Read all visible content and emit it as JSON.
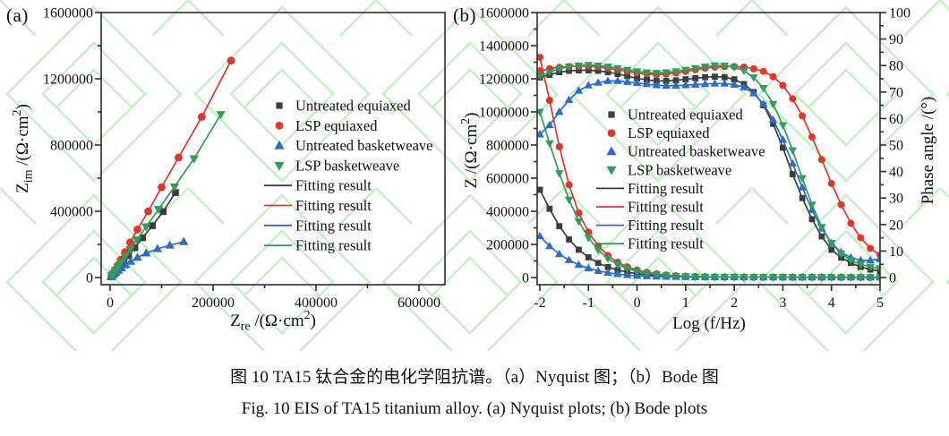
{
  "panels": {
    "a": "(a)",
    "b": "(b)"
  },
  "caption": {
    "zh": "图 10 TA15 钛合金的电化学阻抗谱。（a）Nyquist 图；（b）Bode 图",
    "en": "Fig. 10 EIS of TA15 titanium alloy. (a) Nyquist plots; (b) Bode plots"
  },
  "colors": {
    "black": "#3d3d3d",
    "red": "#e53429",
    "blue": "#2b6cd0",
    "green": "#2e9e5c",
    "axis": "#2f2f2f",
    "watermark": "#8ee88e"
  },
  "chart_data": [
    {
      "type": "scatter",
      "panel": "(a)",
      "xlabel": "Zre /(Ω·cm2)",
      "ylabel": "Zim /(Ω·cm2)",
      "xlabel_parts": [
        [
          "Z"
        ],
        [
          "re",
          "sub"
        ],
        [
          " /(Ω·cm"
        ],
        [
          "2",
          "sup"
        ],
        [
          ")"
        ]
      ],
      "ylabel_parts": [
        [
          "Z"
        ],
        [
          "im",
          "sub"
        ],
        [
          " /(Ω·cm"
        ],
        [
          "2",
          "sup"
        ],
        [
          ")"
        ]
      ],
      "xlim": [
        0,
        650000
      ],
      "ylim": [
        0,
        1600000
      ],
      "xticks": [
        0,
        200000,
        400000,
        600000
      ],
      "yticks": [
        0,
        400000,
        800000,
        1200000,
        1600000
      ],
      "xminor": [
        100000,
        300000,
        500000
      ],
      "yminor": [
        200000,
        600000,
        1000000,
        1400000
      ],
      "grid": false,
      "legend_position": "inside-right",
      "fitting_label": "Fitting result",
      "series": [
        {
          "name": "Untreated equiaxed",
          "color_key": "black",
          "marker": "square",
          "points": [
            [
              2000,
              5000
            ],
            [
              5000,
              14000
            ],
            [
              9000,
              28000
            ],
            [
              14000,
              47000
            ],
            [
              20000,
              70000
            ],
            [
              27000,
              98000
            ],
            [
              36000,
              133000
            ],
            [
              48000,
              180000
            ],
            [
              63000,
              240000
            ],
            [
              82000,
              313000
            ],
            [
              103000,
              398000
            ],
            [
              127000,
              513000
            ]
          ]
        },
        {
          "name": "LSP equiaxed",
          "color_key": "red",
          "marker": "circle",
          "points": [
            [
              3000,
              12000
            ],
            [
              6000,
              25000
            ],
            [
              10000,
              47000
            ],
            [
              15000,
              74000
            ],
            [
              21000,
              108000
            ],
            [
              29000,
              153000
            ],
            [
              39000,
              212000
            ],
            [
              53000,
              290000
            ],
            [
              74000,
              400000
            ],
            [
              100000,
              545000
            ],
            [
              133000,
              725000
            ],
            [
              178000,
              970000
            ],
            [
              235000,
              1310000
            ]
          ]
        },
        {
          "name": "Untreated basketweave",
          "color_key": "blue",
          "marker": "tri-up",
          "points": [
            [
              2000,
              5000
            ],
            [
              4000,
              11000
            ],
            [
              7000,
              19000
            ],
            [
              11000,
              30000
            ],
            [
              16000,
              43000
            ],
            [
              22000,
              58000
            ],
            [
              30000,
              76000
            ],
            [
              40000,
              97000
            ],
            [
              53000,
              121000
            ],
            [
              70000,
              147000
            ],
            [
              92000,
              173000
            ],
            [
              116000,
              195000
            ],
            [
              143000,
              216000
            ]
          ]
        },
        {
          "name": "LSP basketweave",
          "color_key": "green",
          "marker": "tri-down",
          "points": [
            [
              3000,
              11000
            ],
            [
              6000,
              23000
            ],
            [
              10000,
              42000
            ],
            [
              15000,
              64000
            ],
            [
              21000,
              92000
            ],
            [
              29000,
              127000
            ],
            [
              39000,
              170000
            ],
            [
              52000,
              228000
            ],
            [
              70000,
              307000
            ],
            [
              94000,
              412000
            ],
            [
              125000,
              548000
            ],
            [
              163000,
              718000
            ],
            [
              215000,
              985000
            ]
          ]
        }
      ]
    },
    {
      "type": "line",
      "panel": "(b)",
      "xlabel": "Log (f/Hz)",
      "ylabel_left": "Z /(Ω·cm2)",
      "ylabel_right": "Phase angle /(°)",
      "xlabel_parts": [
        [
          "Log (f/Hz)"
        ]
      ],
      "ylabel_left_parts": [
        [
          "Z /(Ω·cm"
        ],
        [
          "2",
          "sup"
        ],
        [
          ")"
        ]
      ],
      "ylabel_right_parts": [
        [
          "Phase angle /(°)"
        ]
      ],
      "xlim": [
        -2,
        5
      ],
      "ylim_left": [
        0,
        1600000
      ],
      "ylim_right": [
        0,
        100
      ],
      "xticks": [
        -2,
        -1,
        0,
        1,
        2,
        3,
        4,
        5
      ],
      "yticks_left": [
        0,
        200000,
        400000,
        600000,
        800000,
        1000000,
        1200000,
        1400000,
        1600000
      ],
      "yticks_right": [
        0,
        10,
        20,
        30,
        40,
        50,
        60,
        70,
        80,
        90,
        100
      ],
      "grid": false,
      "legend_position": "inside-center",
      "fitting_label": "Fitting result",
      "x": [
        -2,
        -1.8,
        -1.6,
        -1.4,
        -1.2,
        -1,
        -0.8,
        -0.6,
        -0.4,
        -0.2,
        0,
        0.2,
        0.4,
        0.6,
        0.8,
        1,
        1.2,
        1.4,
        1.6,
        1.8,
        2,
        2.2,
        2.4,
        2.6,
        2.8,
        3,
        3.2,
        3.4,
        3.6,
        3.8,
        4,
        4.2,
        4.4,
        4.6,
        4.8,
        5
      ],
      "series": [
        {
          "name": "Untreated equiaxed",
          "color_key": "black",
          "marker": "square",
          "impedance": [
            530000,
            415000,
            310000,
            230000,
            168000,
            122000,
            88000,
            63000,
            45000,
            32000,
            23000,
            16500,
            12000,
            8500,
            6200,
            4600,
            3600,
            3000,
            2600,
            2300,
            2100,
            2000,
            1900,
            1800,
            1700,
            1700,
            1600,
            1600,
            1500,
            1500,
            1500,
            1400,
            1400,
            1400,
            1300,
            1300
          ],
          "phase": [
            75.5,
            76.5,
            77.5,
            78,
            78.2,
            78.2,
            78,
            77.5,
            76.8,
            76,
            75.2,
            74.6,
            74.2,
            74.2,
            74.4,
            74.8,
            75.2,
            75.6,
            75.8,
            75.6,
            74.8,
            73,
            70,
            65,
            58,
            49,
            39,
            30,
            22,
            15.5,
            10.5,
            7.5,
            5.5,
            4,
            3,
            2.5
          ]
        },
        {
          "name": "LSP equiaxed",
          "color_key": "red",
          "marker": "circle",
          "impedance": [
            1330000,
            1070000,
            790000,
            560000,
            390000,
            275000,
            192000,
            133000,
            92000,
            64000,
            45000,
            31000,
            22000,
            15500,
            11000,
            8000,
            6000,
            4700,
            3800,
            3200,
            2800,
            2500,
            2300,
            2100,
            2000,
            1900,
            1800,
            1700,
            1700,
            1600,
            1600,
            1500,
            1500,
            1400,
            1400,
            1400
          ],
          "phase": [
            78,
            78.8,
            79.3,
            79.6,
            79.8,
            79.8,
            79.5,
            79,
            78.4,
            77.8,
            77.2,
            76.8,
            76.6,
            76.8,
            77.2,
            77.8,
            78.4,
            79,
            79.4,
            79.6,
            79.6,
            79.4,
            78.8,
            77.8,
            75.8,
            72.5,
            67.5,
            61,
            53,
            44.5,
            35.5,
            27.5,
            20.5,
            15,
            11,
            8.5
          ]
        },
        {
          "name": "Untreated basketweave",
          "color_key": "blue",
          "marker": "tri-up",
          "impedance": [
            250000,
            190000,
            142000,
            105000,
            77000,
            56000,
            40000,
            29000,
            21000,
            15000,
            11000,
            8200,
            6200,
            4800,
            3800,
            3100,
            2600,
            2300,
            2100,
            1900,
            1800,
            1700,
            1600,
            1600,
            1500,
            1500,
            1400,
            1400,
            1400,
            1300,
            1300,
            1300,
            1300,
            1200,
            1200,
            1200
          ],
          "phase": [
            54,
            57.5,
            62.5,
            67,
            70.5,
            72.5,
            73.5,
            74.2,
            74.2,
            73.8,
            73.4,
            73,
            72.6,
            72.4,
            72.4,
            72.6,
            72.8,
            73,
            73.2,
            73.2,
            72.8,
            71.8,
            69.5,
            65.5,
            59.5,
            52,
            43,
            34,
            25.5,
            18.5,
            13,
            9.5,
            7.5,
            6.5,
            6.5,
            7
          ]
        },
        {
          "name": "LSP basketweave",
          "color_key": "green",
          "marker": "tri-down",
          "impedance": [
            1000000,
            810000,
            630000,
            470000,
            340000,
            240000,
            167000,
            115000,
            79000,
            54000,
            37000,
            26000,
            18500,
            13000,
            9500,
            7000,
            5400,
            4300,
            3500,
            3000,
            2600,
            2300,
            2100,
            2000,
            1900,
            1800,
            1700,
            1600,
            1600,
            1500,
            1500,
            1400,
            1400,
            1300,
            1300,
            1300
          ],
          "phase": [
            76,
            77.5,
            78.8,
            79.6,
            80,
            80.2,
            80,
            79.6,
            79,
            78.4,
            77.8,
            77.4,
            77.2,
            77.4,
            77.8,
            78.4,
            79,
            79.6,
            80,
            80,
            79.4,
            78,
            75.5,
            71.5,
            65.5,
            57.5,
            48,
            37.5,
            27.5,
            19,
            13,
            9,
            6.5,
            5,
            4,
            3.5
          ]
        }
      ]
    }
  ]
}
